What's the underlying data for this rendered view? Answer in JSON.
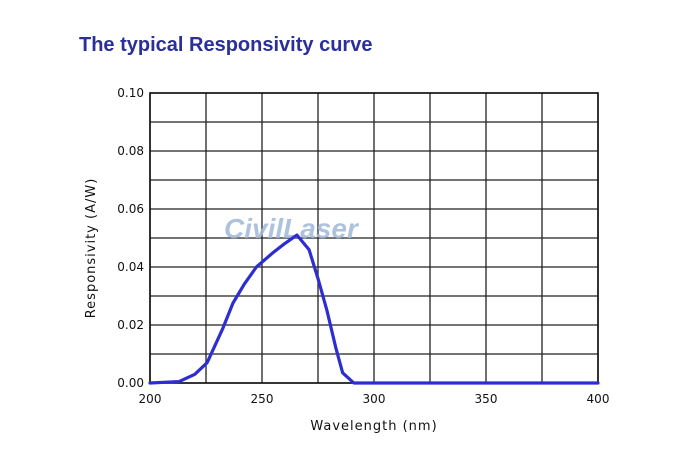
{
  "chart_data": {
    "type": "line",
    "title": "The typical Responsivity curve",
    "xlabel": "Wavelength (nm)",
    "ylabel": "Responsivity (A/W)",
    "xlim": [
      200,
      400
    ],
    "ylim": [
      0,
      0.1
    ],
    "xticks": [
      "200",
      "250",
      "300",
      "350",
      "400"
    ],
    "yticks": [
      "0.00",
      "0.02",
      "0.04",
      "0.06",
      "0.08",
      "0.10"
    ],
    "grid": true,
    "watermark": "CivilLaser",
    "line_color": "#2e2ed0",
    "series": [
      {
        "name": "Responsivity",
        "x": [
          200,
          213,
          220,
          225.5,
          232.6,
          237,
          242,
          247.5,
          255,
          260,
          265.6,
          271,
          275,
          279,
          283,
          286,
          291,
          300,
          350,
          400
        ],
        "y": [
          0.0,
          0.0005,
          0.003,
          0.007,
          0.019,
          0.0275,
          0.034,
          0.04,
          0.045,
          0.048,
          0.051,
          0.046,
          0.036,
          0.025,
          0.012,
          0.0035,
          0.0,
          0.0,
          0.0,
          0.0
        ]
      }
    ]
  }
}
